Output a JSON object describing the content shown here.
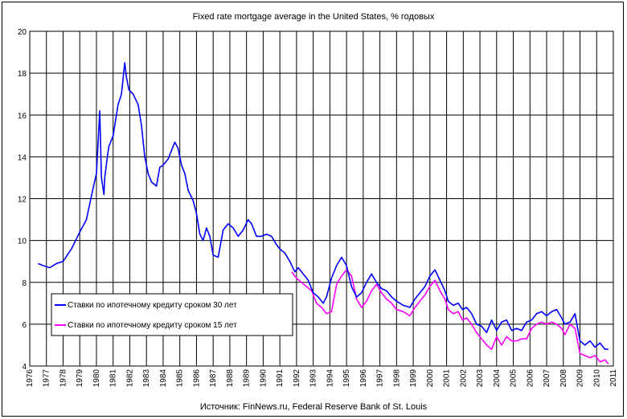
{
  "chart_data": {
    "type": "line",
    "title": "Fixed rate mortgage average in the United States, % годовых",
    "source": "Источник: FinNews.ru, Federal Reserve Bank of St. Louis",
    "xlabel": "",
    "ylabel": "",
    "xlim": [
      1976,
      2011
    ],
    "ylim": [
      4,
      20
    ],
    "x_ticks": [
      "1976",
      "1977",
      "1978",
      "1979",
      "1980",
      "1981",
      "1982",
      "1983",
      "1984",
      "1985",
      "1986",
      "1987",
      "1988",
      "1989",
      "1990",
      "1991",
      "1992",
      "1993",
      "1994",
      "1995",
      "1996",
      "1997",
      "1998",
      "1999",
      "2000",
      "2001",
      "2002",
      "2003",
      "2004",
      "2005",
      "2006",
      "2007",
      "2008",
      "2009",
      "2010",
      "2011"
    ],
    "y_ticks": [
      4,
      6,
      8,
      10,
      12,
      14,
      16,
      18,
      20
    ],
    "grid": true,
    "legend_position": "lower-left",
    "series": [
      {
        "name": "Ставки по ипотечному кредиту сроком 30 лет",
        "color": "#0000ff",
        "x": [
          1976.5,
          1976.8,
          1977.2,
          1977.6,
          1978.0,
          1978.5,
          1979.0,
          1979.4,
          1979.8,
          1980.0,
          1980.2,
          1980.3,
          1980.45,
          1980.5,
          1980.65,
          1980.75,
          1981.0,
          1981.3,
          1981.5,
          1981.7,
          1981.8,
          1981.95,
          1982.2,
          1982.5,
          1982.7,
          1982.9,
          1983.1,
          1983.3,
          1983.6,
          1983.8,
          1984.0,
          1984.3,
          1984.5,
          1984.7,
          1984.9,
          1985.1,
          1985.3,
          1985.5,
          1985.8,
          1986.0,
          1986.2,
          1986.4,
          1986.6,
          1986.8,
          1987.0,
          1987.3,
          1987.6,
          1987.9,
          1988.2,
          1988.5,
          1988.8,
          1989.1,
          1989.3,
          1989.6,
          1989.9,
          1990.2,
          1990.5,
          1990.8,
          1991.0,
          1991.3,
          1991.6,
          1991.9,
          1992.1,
          1992.4,
          1992.7,
          1993.0,
          1993.3,
          1993.6,
          1993.8,
          1994.1,
          1994.4,
          1994.7,
          1995.0,
          1995.3,
          1995.6,
          1995.9,
          1996.2,
          1996.5,
          1996.8,
          1997.1,
          1997.4,
          1997.7,
          1998.0,
          1998.4,
          1998.8,
          1999.1,
          1999.4,
          1999.7,
          2000.0,
          2000.3,
          2000.6,
          2000.9,
          2001.1,
          2001.4,
          2001.7,
          2001.95,
          2002.2,
          2002.5,
          2002.8,
          2003.1,
          2003.4,
          2003.7,
          2004.0,
          2004.3,
          2004.6,
          2004.9,
          2005.2,
          2005.5,
          2005.8,
          2006.1,
          2006.4,
          2006.7,
          2007.0,
          2007.3,
          2007.6,
          2007.9,
          2008.1,
          2008.4,
          2008.7,
          2009.0,
          2009.3,
          2009.6,
          2009.9,
          2010.2,
          2010.5,
          2010.7
        ],
        "values": [
          8.9,
          8.8,
          8.7,
          8.9,
          9.0,
          9.6,
          10.4,
          11.0,
          12.5,
          13.2,
          16.2,
          13.0,
          12.2,
          13.0,
          14.0,
          14.5,
          15.0,
          16.5,
          17.0,
          18.5,
          17.8,
          17.2,
          17.0,
          16.5,
          15.5,
          14.0,
          13.2,
          12.8,
          12.6,
          13.5,
          13.6,
          13.9,
          14.3,
          14.7,
          14.4,
          13.6,
          13.2,
          12.4,
          11.9,
          11.3,
          10.3,
          10.0,
          10.6,
          10.2,
          9.3,
          9.2,
          10.5,
          10.8,
          10.6,
          10.2,
          10.5,
          11.0,
          10.8,
          10.2,
          10.2,
          10.3,
          10.2,
          9.8,
          9.6,
          9.4,
          9.0,
          8.5,
          8.7,
          8.4,
          8.1,
          7.5,
          7.3,
          7.0,
          7.3,
          8.2,
          8.8,
          9.2,
          8.8,
          7.8,
          7.3,
          7.5,
          8.0,
          8.4,
          8.0,
          7.7,
          7.6,
          7.3,
          7.1,
          6.9,
          6.8,
          7.2,
          7.5,
          7.8,
          8.3,
          8.6,
          8.1,
          7.6,
          7.1,
          6.9,
          7.0,
          6.7,
          6.8,
          6.5,
          6.0,
          5.9,
          5.6,
          6.2,
          5.7,
          6.1,
          6.2,
          5.7,
          5.8,
          5.7,
          6.1,
          6.2,
          6.5,
          6.6,
          6.4,
          6.6,
          6.7,
          6.3,
          6.0,
          6.1,
          6.5,
          5.2,
          5.0,
          5.2,
          4.9,
          5.1,
          4.8,
          4.8
        ]
      },
      {
        "name": "Ставки по ипотечному кредиту сроком 15 лет",
        "color": "#ff00ff",
        "x": [
          1991.7,
          1992.0,
          1992.3,
          1992.6,
          1992.9,
          1993.2,
          1993.5,
          1993.8,
          1994.1,
          1994.4,
          1994.7,
          1995.0,
          1995.3,
          1995.6,
          1995.9,
          1996.2,
          1996.5,
          1996.8,
          1997.1,
          1997.4,
          1997.7,
          1998.0,
          1998.4,
          1998.8,
          1999.1,
          1999.4,
          1999.7,
          2000.0,
          2000.3,
          2000.6,
          2000.9,
          2001.1,
          2001.4,
          2001.7,
          2001.95,
          2002.2,
          2002.5,
          2002.8,
          2003.1,
          2003.4,
          2003.7,
          2004.0,
          2004.3,
          2004.6,
          2004.9,
          2005.2,
          2005.5,
          2005.8,
          2006.1,
          2006.4,
          2006.7,
          2007.0,
          2007.3,
          2007.6,
          2007.9,
          2008.1,
          2008.4,
          2008.7,
          2009.0,
          2009.3,
          2009.6,
          2009.9,
          2010.2,
          2010.5,
          2010.7
        ],
        "values": [
          8.5,
          8.2,
          8.0,
          7.8,
          7.6,
          7.0,
          6.8,
          6.5,
          6.6,
          7.9,
          8.3,
          8.6,
          8.3,
          7.2,
          6.8,
          7.1,
          7.6,
          7.9,
          7.5,
          7.2,
          7.0,
          6.7,
          6.6,
          6.4,
          6.8,
          7.1,
          7.4,
          7.8,
          8.1,
          7.6,
          7.2,
          6.7,
          6.5,
          6.6,
          6.2,
          6.3,
          6.0,
          5.6,
          5.3,
          5.0,
          4.8,
          5.4,
          5.0,
          5.4,
          5.2,
          5.2,
          5.3,
          5.3,
          5.8,
          6.0,
          6.1,
          6.0,
          6.1,
          6.0,
          5.8,
          5.5,
          6.0,
          5.8,
          4.6,
          4.5,
          4.4,
          4.5,
          4.2,
          4.3,
          4.1
        ]
      }
    ]
  }
}
